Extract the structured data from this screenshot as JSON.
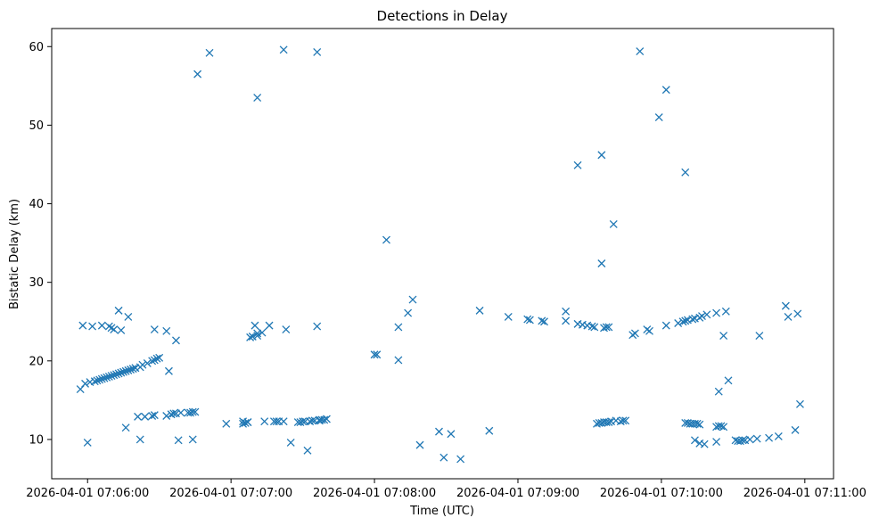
{
  "chart_data": {
    "type": "scatter",
    "title": "Detections in Delay",
    "xlabel": "Time (UTC)",
    "ylabel": "Bistatic Delay (km)",
    "x_ticks": [
      "2026-04-01 07:06:00",
      "2026-04-01 07:07:00",
      "2026-04-01 07:08:00",
      "2026-04-01 07:09:00",
      "2026-04-01 07:10:00",
      "2026-04-01 07:11:00"
    ],
    "y_ticks": [
      10,
      20,
      30,
      40,
      50,
      60
    ],
    "xlim": [
      "2026-04-01 07:05:45",
      "2026-04-01 07:11:12"
    ],
    "ylim": [
      5,
      62.3
    ],
    "marker": "x",
    "color": "#1f77b4",
    "grid": false,
    "series": [
      {
        "x": [
          "2026-04-01 07:05:57",
          "2026-04-01 07:05:59",
          "2026-04-01 07:06:01",
          "2026-04-01 07:06:03",
          "2026-04-01 07:06:04",
          "2026-04-01 07:06:05",
          "2026-04-01 07:06:06",
          "2026-04-01 07:06:07",
          "2026-04-01 07:06:08",
          "2026-04-01 07:06:09",
          "2026-04-01 07:06:10",
          "2026-04-01 07:06:11",
          "2026-04-01 07:06:12",
          "2026-04-01 07:06:13",
          "2026-04-01 07:06:14",
          "2026-04-01 07:06:15",
          "2026-04-01 07:06:16",
          "2026-04-01 07:06:17",
          "2026-04-01 07:06:18",
          "2026-04-01 07:06:19",
          "2026-04-01 07:06:20",
          "2026-04-01 07:06:22",
          "2026-04-01 07:06:23",
          "2026-04-01 07:06:25",
          "2026-04-01 07:06:27",
          "2026-04-01 07:06:28",
          "2026-04-01 07:06:29",
          "2026-04-01 07:06:30",
          "2026-04-01 07:06:06",
          "2026-04-01 07:06:09",
          "2026-04-01 07:06:10",
          "2026-04-01 07:06:11",
          "2026-04-01 07:06:14",
          "2026-04-01 07:06:28",
          "2026-04-01 07:06:33",
          "2026-04-01 07:06:37",
          "2026-04-01 07:06:13",
          "2026-04-01 07:05:58",
          "2026-04-01 07:06:00",
          "2026-04-01 07:06:02",
          "2026-04-01 07:06:17",
          "2026-04-01 07:06:34",
          "2026-04-01 07:06:16",
          "2026-04-01 07:06:21",
          "2026-04-01 07:06:24",
          "2026-04-01 07:06:27",
          "2026-04-01 07:06:28",
          "2026-04-01 07:06:33",
          "2026-04-01 07:06:35",
          "2026-04-01 07:06:36",
          "2026-04-01 07:06:37",
          "2026-04-01 07:06:39",
          "2026-04-01 07:06:42",
          "2026-04-01 07:06:43",
          "2026-04-01 07:06:44",
          "2026-04-01 07:06:45",
          "2026-04-01 07:06:38",
          "2026-04-01 07:06:44",
          "2026-04-01 07:06:46",
          "2026-04-01 07:06:51",
          "2026-04-01 07:06:58",
          "2026-04-01 07:07:06",
          "2026-04-01 07:07:07",
          "2026-04-01 07:07:08",
          "2026-04-01 07:07:09",
          "2026-04-01 07:07:10",
          "2026-04-01 07:07:11",
          "2026-04-01 07:07:13",
          "2026-04-01 07:07:16",
          "2026-04-01 07:07:23",
          "2026-04-01 07:07:36",
          "2026-04-01 07:07:05",
          "2026-04-01 07:07:07",
          "2026-04-01 07:07:14",
          "2026-04-01 07:07:18",
          "2026-04-01 07:07:19",
          "2026-04-01 07:07:20",
          "2026-04-01 07:07:28",
          "2026-04-01 07:07:29",
          "2026-04-01 07:07:30",
          "2026-04-01 07:07:31",
          "2026-04-01 07:07:33",
          "2026-04-01 07:07:34",
          "2026-04-01 07:07:35",
          "2026-04-01 07:07:37",
          "2026-04-01 07:07:38",
          "2026-04-01 07:07:39",
          "2026-04-01 07:07:40",
          "2026-04-01 07:07:25",
          "2026-04-01 07:07:32",
          "2026-04-01 07:07:11",
          "2026-04-01 07:07:22",
          "2026-04-01 07:07:36",
          "2026-04-01 07:08:00",
          "2026-04-01 07:08:01",
          "2026-04-01 07:08:05",
          "2026-04-01 07:08:10",
          "2026-04-01 07:08:10",
          "2026-04-01 07:08:14",
          "2026-04-01 07:08:16",
          "2026-04-01 07:08:19",
          "2026-04-01 07:08:27",
          "2026-04-01 07:08:29",
          "2026-04-01 07:08:32",
          "2026-04-01 07:08:36",
          "2026-04-01 07:08:44",
          "2026-04-01 07:08:48",
          "2026-04-01 07:08:56",
          "2026-04-01 07:09:04",
          "2026-04-01 07:09:05",
          "2026-04-01 07:09:10",
          "2026-04-01 07:09:11",
          "2026-04-01 07:09:20",
          "2026-04-01 07:09:20",
          "2026-04-01 07:09:25",
          "2026-04-01 07:09:27",
          "2026-04-01 07:09:29",
          "2026-04-01 07:09:31",
          "2026-04-01 07:09:32",
          "2026-04-01 07:09:35",
          "2026-04-01 07:09:36",
          "2026-04-01 07:09:37",
          "2026-04-01 07:09:38",
          "2026-04-01 07:09:48",
          "2026-04-01 07:09:49",
          "2026-04-01 07:09:54",
          "2026-04-01 07:09:55",
          "2026-04-01 07:10:02",
          "2026-04-01 07:10:07",
          "2026-04-01 07:10:09",
          "2026-04-01 07:10:10",
          "2026-04-01 07:10:11",
          "2026-04-01 07:10:13",
          "2026-04-01 07:10:14",
          "2026-04-01 07:10:16",
          "2026-04-01 07:10:17",
          "2026-04-01 07:10:19",
          "2026-04-01 07:10:23",
          "2026-04-01 07:10:27",
          "2026-04-01 07:10:41",
          "2026-04-01 07:10:52",
          "2026-04-01 07:10:53",
          "2026-04-01 07:10:57",
          "2026-04-01 07:09:33",
          "2026-04-01 07:09:34",
          "2026-04-01 07:09:35",
          "2026-04-01 07:09:36",
          "2026-04-01 07:09:37",
          "2026-04-01 07:09:38",
          "2026-04-01 07:09:39",
          "2026-04-01 07:09:41",
          "2026-04-01 07:09:43",
          "2026-04-01 07:09:44",
          "2026-04-01 07:09:45",
          "2026-04-01 07:10:10",
          "2026-04-01 07:10:11",
          "2026-04-01 07:10:12",
          "2026-04-01 07:10:13",
          "2026-04-01 07:10:14",
          "2026-04-01 07:10:15",
          "2026-04-01 07:10:16",
          "2026-04-01 07:10:23",
          "2026-04-01 07:10:24",
          "2026-04-01 07:10:25",
          "2026-04-01 07:10:26",
          "2026-04-01 07:10:14",
          "2026-04-01 07:10:16",
          "2026-04-01 07:10:18",
          "2026-04-01 07:10:31",
          "2026-04-01 07:10:32",
          "2026-04-01 07:10:33",
          "2026-04-01 07:10:34",
          "2026-04-01 07:10:35",
          "2026-04-01 07:10:37",
          "2026-04-01 07:10:40",
          "2026-04-01 07:10:45",
          "2026-04-01 07:10:49",
          "2026-04-01 07:10:56",
          "2026-04-01 07:10:24",
          "2026-04-01 07:10:28",
          "2026-04-01 07:10:26",
          "2026-04-01 07:10:58",
          "2026-04-01 07:09:25",
          "2026-04-01 07:09:35",
          "2026-04-01 07:09:40",
          "2026-04-01 07:09:51",
          "2026-04-01 07:09:59",
          "2026-04-01 07:10:02",
          "2026-04-01 07:10:10",
          "2026-04-01 07:10:23",
          "2026-04-01 07:07:05",
          "2026-04-01 07:06:22",
          "2026-04-01 07:07:11",
          "2026-04-01 07:07:37",
          "2026-04-01 07:07:22"
        ],
        "y": [
          16.4,
          17.1,
          17.3,
          17.4,
          17.5,
          17.6,
          17.7,
          17.8,
          17.9,
          18.0,
          18.1,
          18.2,
          18.3,
          18.4,
          18.5,
          18.6,
          18.7,
          18.8,
          18.9,
          19.0,
          19.1,
          19.2,
          19.5,
          19.7,
          20.0,
          20.1,
          20.3,
          20.4,
          24.5,
          24.4,
          24.2,
          24.0,
          23.9,
          24.0,
          23.8,
          22.6,
          26.4,
          24.5,
          9.6,
          24.4,
          25.6,
          18.7,
          11.5,
          12.9,
          12.9,
          13.0,
          13.1,
          13.0,
          13.2,
          13.3,
          13.3,
          13.4,
          13.4,
          13.4,
          13.5,
          13.5,
          9.9,
          10.0,
          56.5,
          59.2,
          12.0,
          12.1,
          12.2,
          23.0,
          23.1,
          24.5,
          23.5,
          23.6,
          24.5,
          24.0,
          24.4,
          12.0,
          12.2,
          12.3,
          12.3,
          12.3,
          12.3,
          12.2,
          12.2,
          12.3,
          12.3,
          12.3,
          12.4,
          12.4,
          12.4,
          12.5,
          12.5,
          12.6,
          9.6,
          8.6,
          53.5,
          59.6,
          59.3,
          20.8,
          20.8,
          35.4,
          24.3,
          20.1,
          26.1,
          27.8,
          9.3,
          11.0,
          7.7,
          10.7,
          7.5,
          26.4,
          11.1,
          25.6,
          25.3,
          25.2,
          25.1,
          25.0,
          25.1,
          26.3,
          24.7,
          24.6,
          24.5,
          24.4,
          24.3,
          32.4,
          24.2,
          24.3,
          24.3,
          23.3,
          23.5,
          24.0,
          23.8,
          24.5,
          24.8,
          25.0,
          25.1,
          25.2,
          25.3,
          25.4,
          25.5,
          25.7,
          25.9,
          26.1,
          26.3,
          23.2,
          27.0,
          25.6,
          26.0,
          12.0,
          12.1,
          12.1,
          12.2,
          12.2,
          12.2,
          12.3,
          12.4,
          12.3,
          12.4,
          12.4,
          12.1,
          12.1,
          12.0,
          12.0,
          12.0,
          12.0,
          11.9,
          11.6,
          11.7,
          11.7,
          11.6,
          9.9,
          9.5,
          9.4,
          9.9,
          9.8,
          9.8,
          9.9,
          9.9,
          10.0,
          10.1,
          10.2,
          10.4,
          11.2,
          16.1,
          17.5,
          23.2,
          14.5,
          44.9,
          46.2,
          37.4,
          59.4,
          51.0,
          54.5,
          44.0,
          9.7,
          12.3,
          10.0,
          23.2,
          12.5,
          12.3
        ]
      }
    ]
  }
}
